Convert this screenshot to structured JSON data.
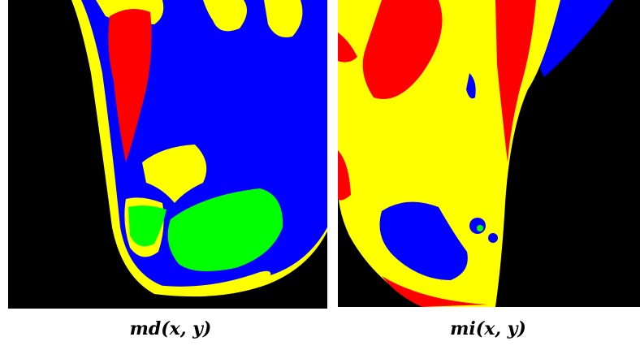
{
  "panels": [
    {
      "caption": "md(x, y)"
    },
    {
      "caption": "mi(x, y)"
    }
  ]
}
